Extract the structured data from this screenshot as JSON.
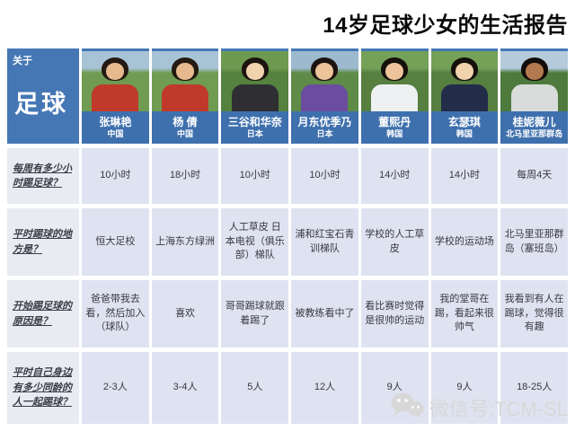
{
  "title": "14岁足球少女的生活报告",
  "corner": {
    "topic_label": "关于",
    "topic": "足球"
  },
  "players": [
    {
      "name": "张琳艳",
      "country": "中国",
      "jersey": "#c0392b",
      "hair": "#241a12",
      "skin": "#e6b98f",
      "bg_top": "#a8c3d6",
      "bg_bottom": "#6f9c52"
    },
    {
      "name": "杨 倩",
      "country": "中国",
      "jersey": "#c0392b",
      "hair": "#241a12",
      "skin": "#e6b98f",
      "bg_top": "#a8c3d6",
      "bg_bottom": "#6f9c52"
    },
    {
      "name": "三谷和华奈",
      "country": "日本",
      "jersey": "#2e2e33",
      "hair": "#1d1410",
      "skin": "#f0d2ad",
      "bg_top": "#6d9a50",
      "bg_bottom": "#55823e"
    },
    {
      "name": "月东优季乃",
      "country": "日本",
      "jersey": "#6a4d9e",
      "hair": "#1d1410",
      "skin": "#ecc39a",
      "bg_top": "#9cb9ce",
      "bg_bottom": "#5e8c48"
    },
    {
      "name": "董熙丹",
      "country": "韩国",
      "jersey": "#eef0f2",
      "hair": "#15100c",
      "skin": "#ecc39a",
      "bg_top": "#74a058",
      "bg_bottom": "#567f40"
    },
    {
      "name": "玄瑟琪",
      "country": "韩国",
      "jersey": "#232c49",
      "hair": "#15100c",
      "skin": "#f0d2ad",
      "bg_top": "#74a058",
      "bg_bottom": "#567f40"
    },
    {
      "name": "桂妮薇儿",
      "country": "北马里亚那群岛",
      "jersey": "#d8dcda",
      "hair": "#120d0a",
      "skin": "#b27a4e",
      "bg_top": "#b5cbdb",
      "bg_bottom": "#4e7a3e"
    }
  ],
  "rows": [
    {
      "question": "每周有多少小时踢足球？",
      "answers": [
        "10小时",
        "18小时",
        "10小时",
        "10小时",
        "14小时",
        "14小时",
        "每周4天"
      ]
    },
    {
      "question": "平时踢球的地方是？",
      "answers": [
        "恒大足校",
        "上海东方绿洲",
        "人工草皮 日本电视（俱乐部）梯队",
        "浦和红宝石青训梯队",
        "学校的人工草皮",
        "学校的运动场",
        "北马里亚那群岛（塞班岛）"
      ]
    },
    {
      "question": "开始踢足球的原因是？",
      "answers": [
        "爸爸带我去看，然后加入（球队）",
        "喜欢",
        "哥哥踢球就跟着踢了",
        "被教练看中了",
        "看比赛时觉得是很帅的运动",
        "我的堂哥在踢，看起来很帅气",
        "我看到有人在踢球，觉得很有趣"
      ]
    },
    {
      "question": "平时自己身边有多少同龄的人一起踢球？",
      "answers": [
        "2-3人",
        "3-4人",
        "5人",
        "12人",
        "9人",
        "9人",
        "18-25人"
      ]
    }
  ],
  "watermark": {
    "icon": "wechat-logo",
    "text": "微信号:TCM-SL"
  },
  "colors": {
    "header_blue": "#4577b5",
    "name_band_blue": "#3f70ae",
    "question_cell_bg": "#e9ebf3",
    "answer_cell_bg": "#dfe3f1",
    "title_color": "#0a0a0a",
    "watermark_gray": "#d8d8d8"
  },
  "chart_data": {
    "type": "table",
    "title": "14岁足球少女的生活报告",
    "corner_header": "关于 足球",
    "columns": [
      "张琳艳（中国）",
      "杨 倩（中国）",
      "三谷和华奈（日本）",
      "月东优季乃（日本）",
      "董熙丹（韩国）",
      "玄瑟琪（韩国）",
      "桂妮薇儿（北马里亚那群岛）"
    ],
    "row_headers": [
      "每周有多少小时踢足球？",
      "平时踢球的地方是？",
      "开始踢足球的原因是？",
      "平时自己身边有多少同龄的人一起踢球？"
    ],
    "cells": [
      [
        "10小时",
        "18小时",
        "10小时",
        "10小时",
        "14小时",
        "14小时",
        "每周4天"
      ],
      [
        "恒大足校",
        "上海东方绿洲",
        "人工草皮 日本电视（俱乐部）梯队",
        "浦和红宝石青训梯队",
        "学校的人工草皮",
        "学校的运动场",
        "北马里亚那群岛（塞班岛）"
      ],
      [
        "爸爸带我去看，然后加入（球队）",
        "喜欢",
        "哥哥踢球就跟着踢了",
        "被教练看中了",
        "看比赛时觉得是很帅的运动",
        "我的堂哥在踢，看起来很帅气",
        "我看到有人在踢球，觉得很有趣"
      ],
      [
        "2-3人",
        "3-4人",
        "5人",
        "12人",
        "9人",
        "9人",
        "18-25人"
      ]
    ]
  }
}
